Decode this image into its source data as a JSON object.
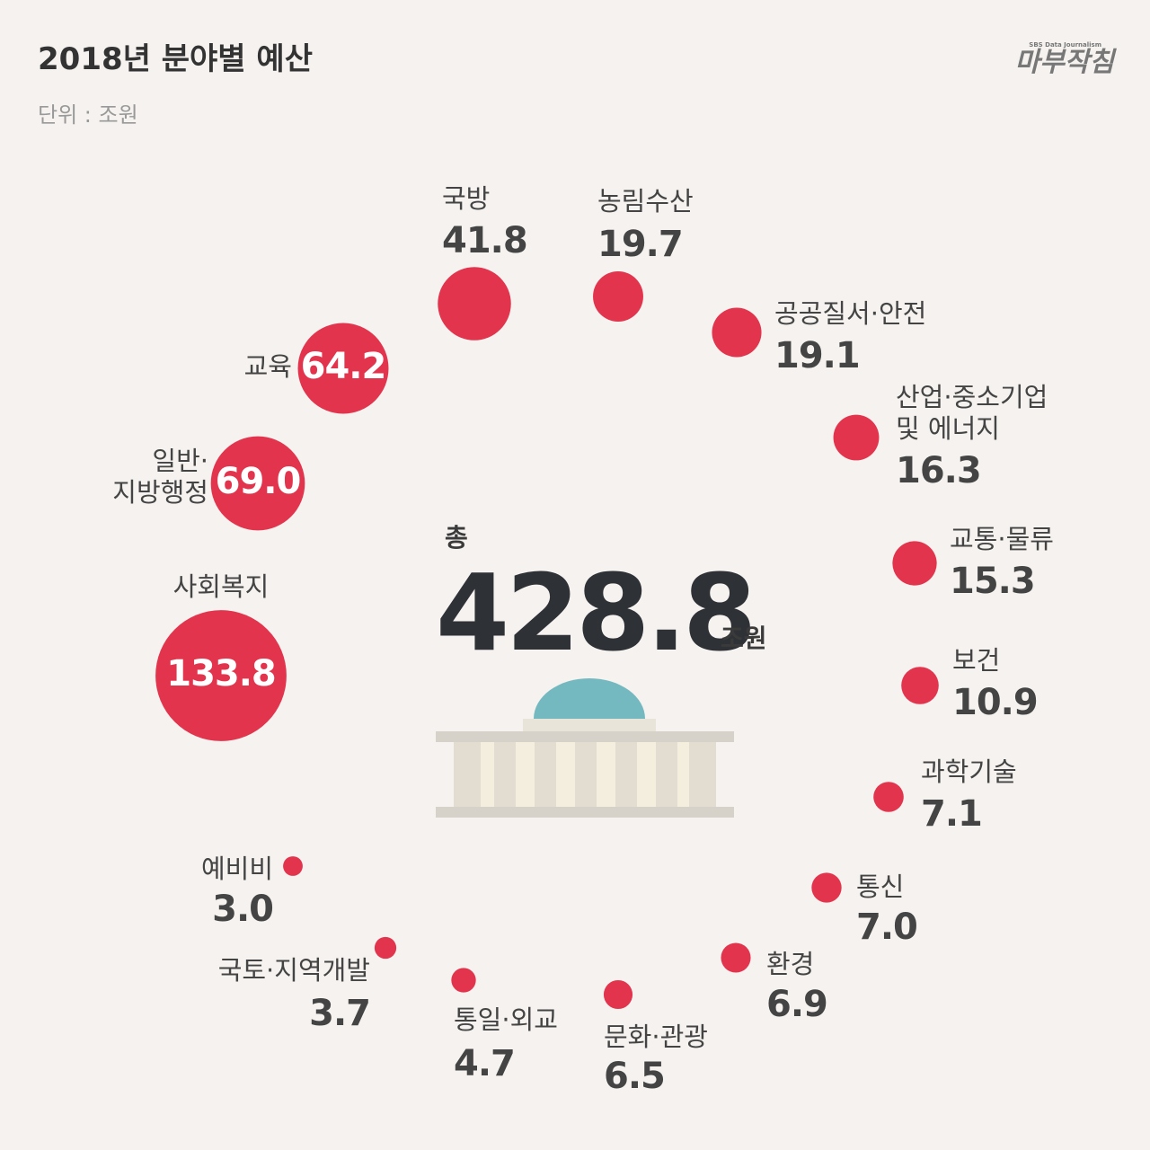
{
  "brand": {
    "name": "마부작침",
    "tagline": "SBS Data Journalism"
  },
  "chart_data": {
    "type": "bubble",
    "title": "2018년 분야별 예산",
    "subtitle": "단위 : 조원",
    "total_label": "총",
    "total": 428.8,
    "total_unit": "조원",
    "color": "#e2344d",
    "categories": [
      "사회복지",
      "일반·\n지방행정",
      "교육",
      "국방",
      "농림수산",
      "공공질서·안전",
      "산업·중소기업\n및 에너지",
      "교통·물류",
      "보건",
      "과학기술",
      "통신",
      "환경",
      "문화·관광",
      "통일·외교",
      "국토·지역개발",
      "예비비"
    ],
    "values": [
      133.8,
      69.0,
      64.2,
      41.8,
      19.7,
      19.1,
      16.3,
      15.3,
      10.9,
      7.1,
      7.0,
      6.9,
      6.5,
      4.7,
      3.7,
      3.0
    ],
    "value_labels": [
      "133.8",
      "69.0",
      "64.2",
      "41.8",
      "19.7",
      "19.1",
      "16.3",
      "15.3",
      "10.9",
      "7.1",
      "7.0",
      "6.9",
      "6.5",
      "4.7",
      "3.7",
      "3.0"
    ]
  }
}
